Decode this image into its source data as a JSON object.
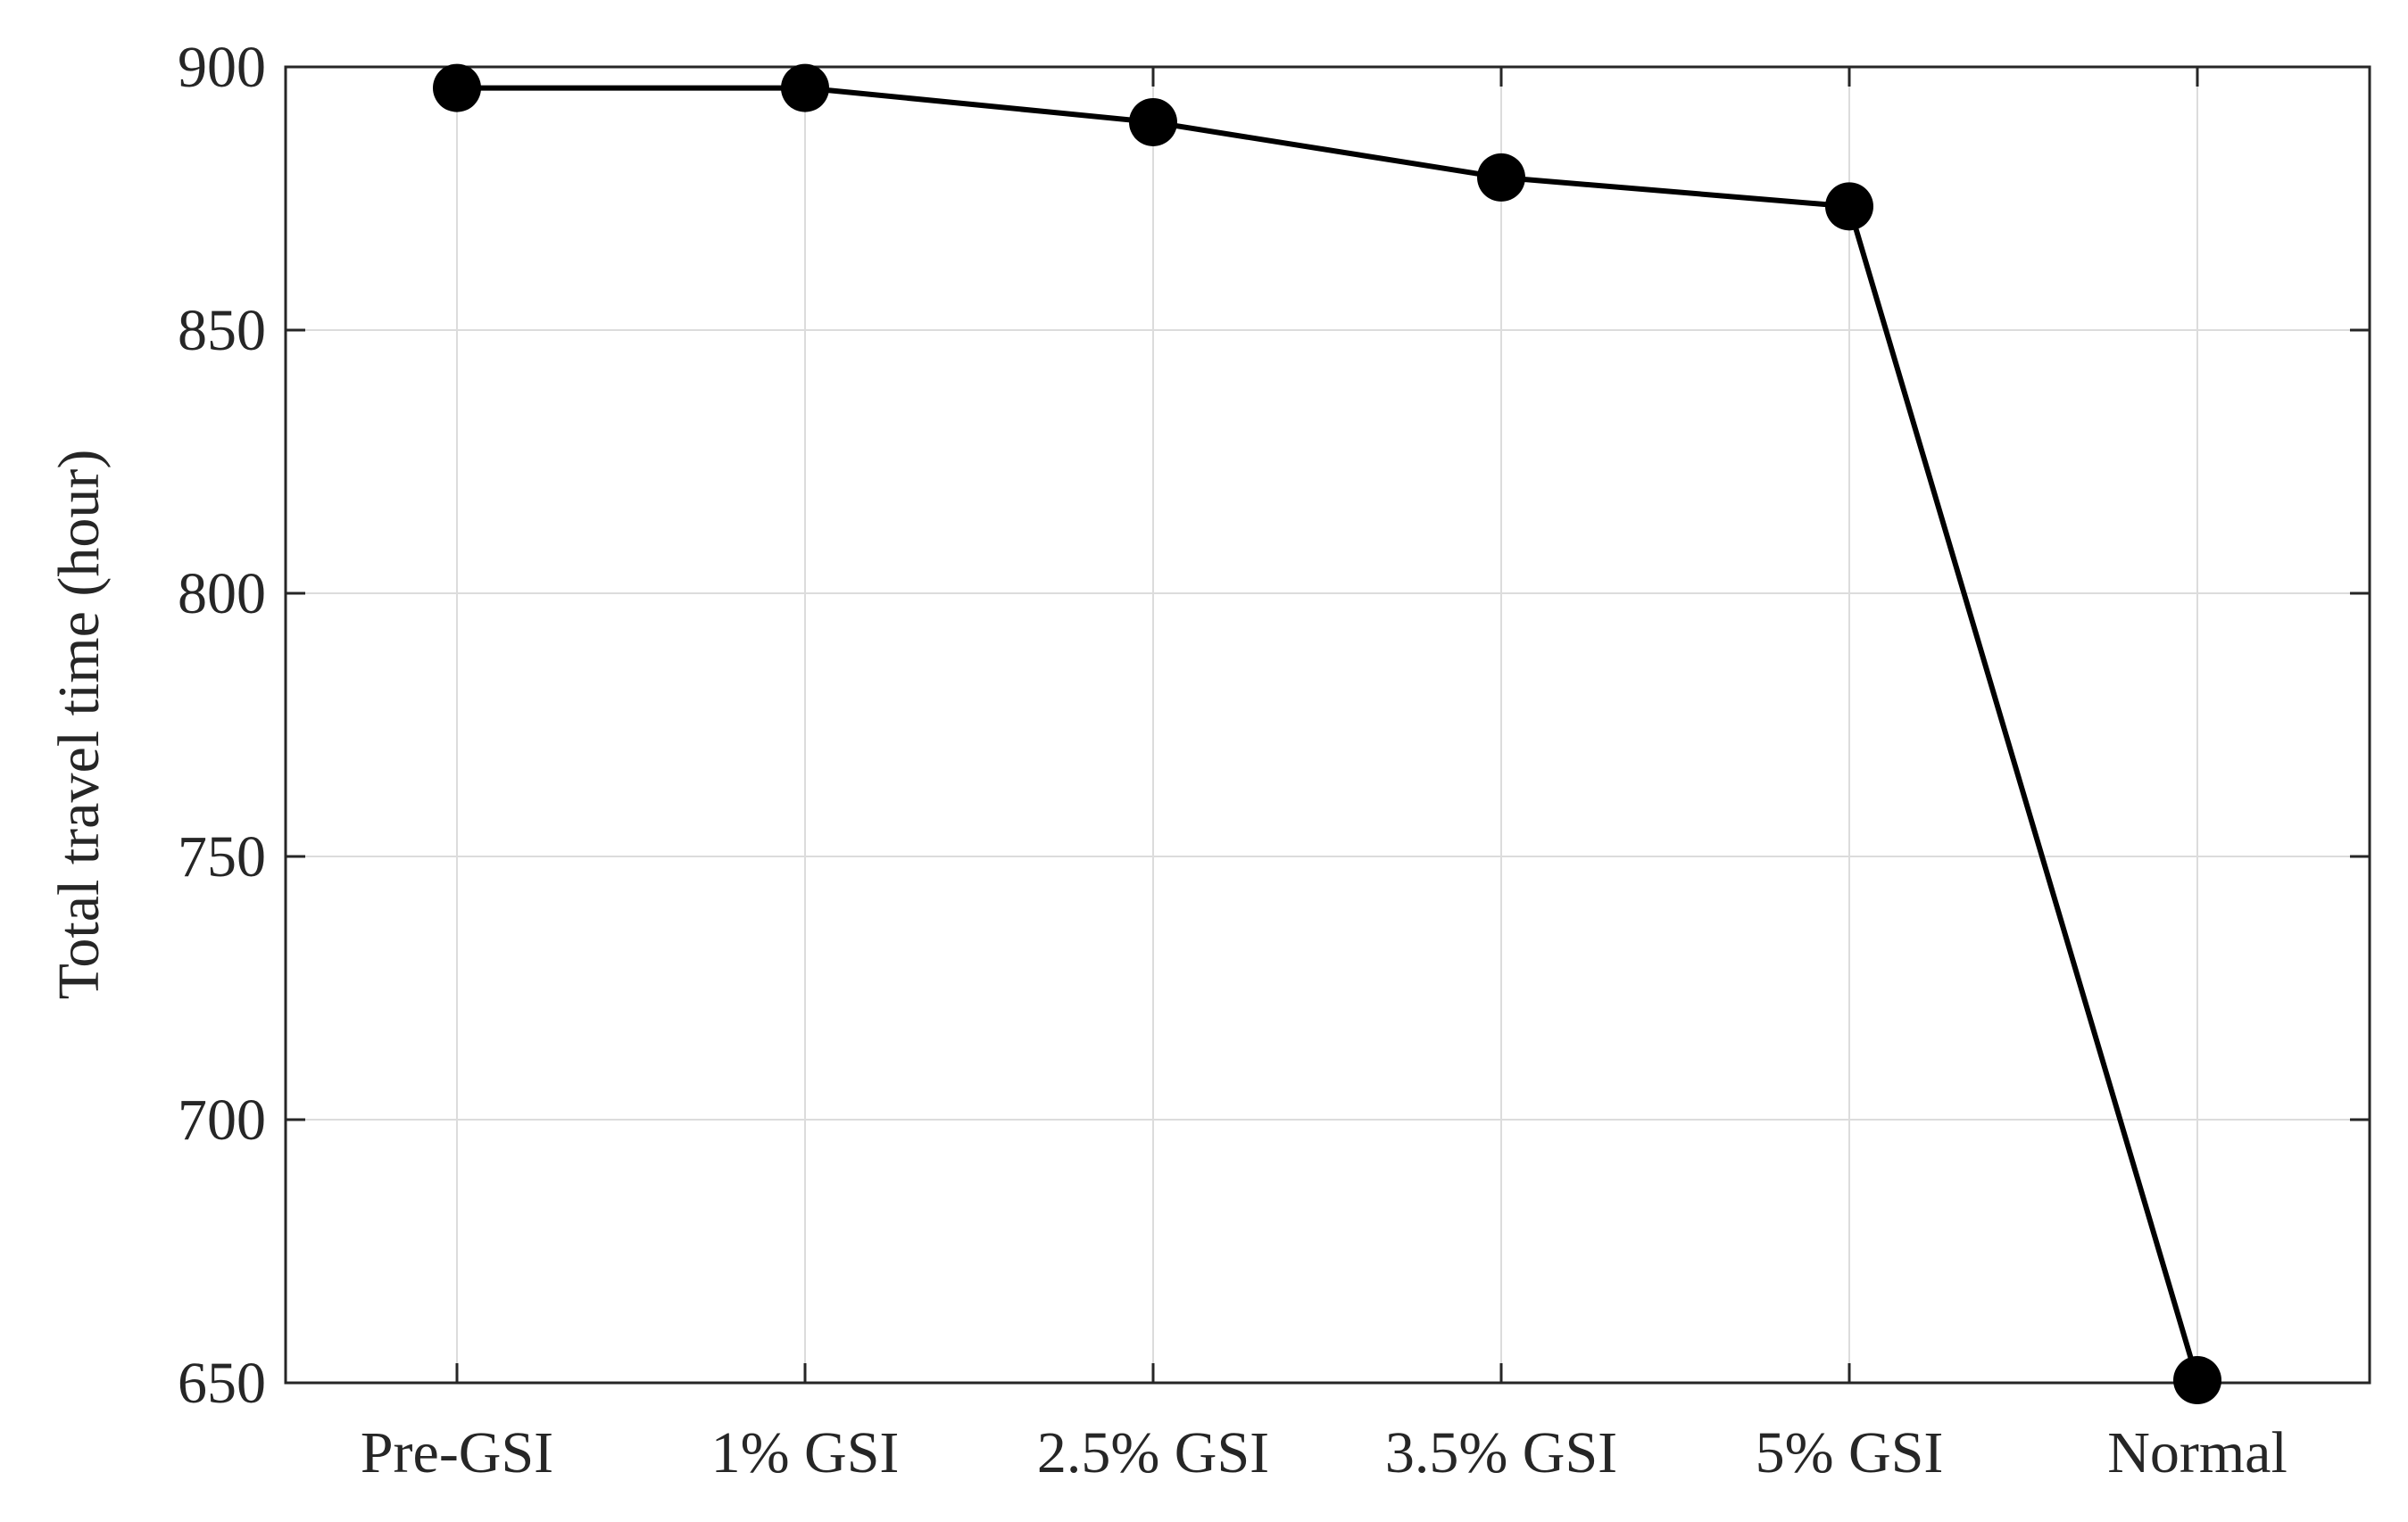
{
  "chart_data": {
    "type": "line",
    "title": "",
    "xlabel": "",
    "ylabel": "Total travel time (hour)",
    "categories": [
      "Pre-GSI",
      "1% GSI",
      "2.5% GSI",
      "3.5% GSI",
      "5% GSI",
      "Normal"
    ],
    "series": [
      {
        "values": [
          896,
          896,
          889.5,
          879,
          873.5,
          650.5
        ],
        "color": "#000000"
      }
    ],
    "ylim": [
      650,
      900
    ],
    "yticks": [
      650,
      700,
      750,
      800,
      850,
      900
    ],
    "grid": true,
    "legend": "none",
    "marker": "filled-circle"
  },
  "colors": {
    "line": "#000000",
    "marker": "#000000",
    "axis": "#262626",
    "grid": "#dcdcdc",
    "background": "#ffffff"
  }
}
